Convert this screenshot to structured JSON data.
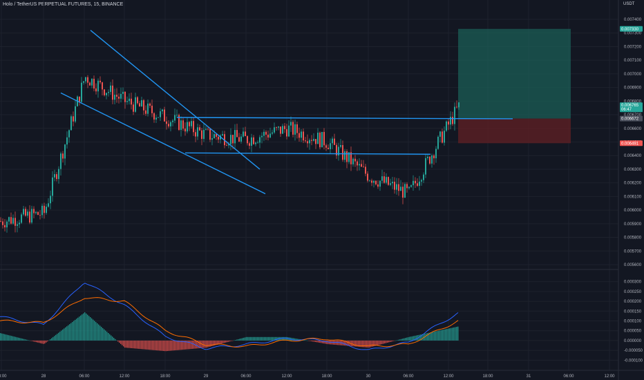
{
  "header": {
    "title": "Holo / TetherUS PERPETUAL FUTURES, 15, BINANCE",
    "currency": "USDT"
  },
  "colors": {
    "background": "#131722",
    "up": "#26a69a",
    "down": "#ef5350",
    "trendline": "#2196f3",
    "macd_line": "#2962ff",
    "signal_line": "#ff6d00",
    "profit_zone": "#1b5e55",
    "loss_zone": "#5c1f24"
  },
  "price_axis": {
    "ticks": [
      "0.007400",
      "0.007300",
      "0.007200",
      "0.007100",
      "0.007000",
      "0.006900",
      "0.006800",
      "0.006700",
      "0.006600",
      "0.006500",
      "0.006400",
      "0.006300",
      "0.006200",
      "0.006100",
      "0.006000",
      "0.005900",
      "0.005800",
      "0.005700",
      "0.005600"
    ]
  },
  "macd_axis": {
    "ticks": [
      "0.000300",
      "0.000250",
      "0.000200",
      "0.000150",
      "0.000100",
      "0.000050",
      "0.000000",
      "-0.000050",
      "-0.000100"
    ]
  },
  "time_axis": {
    "ticks": [
      "18:00",
      "28",
      "06:00",
      "12:00",
      "18:00",
      "29",
      "06:00",
      "12:00",
      "18:00",
      "30",
      "06:00",
      "12:00",
      "18:00",
      "31",
      "06:00",
      "12:00"
    ]
  },
  "badges": {
    "target": "0.007330",
    "current": "0.006765",
    "countdown": "06:47",
    "entry": "0.006672",
    "stop": "0.006491"
  },
  "chart_data": [
    {
      "type": "candlestick",
      "title": "",
      "ylim": [
        0.0056,
        0.0074
      ],
      "x": [
        "18:00",
        "28",
        "06:00",
        "12:00",
        "18:00",
        "29",
        "06:00",
        "12:00",
        "18:00",
        "30",
        "06:00",
        "12:00"
      ],
      "close": [
        0.00592,
        0.00598,
        0.00698,
        0.0068,
        0.00668,
        0.00655,
        0.00652,
        0.0066,
        0.0065,
        0.00625,
        0.00612,
        0.00676
      ],
      "trendlines": [
        {
          "name": "",
          "from": {
            "x": "06:00",
            "y": 0.00732
          },
          "to": {
            "x": "06:00",
            "y": 0.0063
          }
        },
        {
          "name": "",
          "from": {
            "x": "28",
            "y": 0.00686
          },
          "to": {
            "x": "06:00",
            "y": 0.00612
          }
        },
        {
          "name": "",
          "from": {
            "x": "18:00",
            "y": 0.00668
          },
          "to": {
            "x": "12:00",
            "y": 0.00667
          }
        },
        {
          "name": "",
          "from": {
            "x": "18:00",
            "y": 0.00642
          },
          "to": {
            "x": "06:00",
            "y": 0.00641
          }
        }
      ],
      "position": {
        "entry": 0.006672,
        "target": 0.00733,
        "stop": 0.006491
      }
    },
    {
      "type": "line",
      "title": "",
      "ylim": [
        -0.00012,
        0.00032
      ],
      "series": [
        {
          "name": "",
          "values": [
            0.00012,
            8e-05,
            0.0003,
            0.00018,
            2e-05,
            -4e-05,
            -2e-05,
            1e-05,
            0.0,
            -5e-05,
            -1e-05,
            0.00014
          ]
        },
        {
          "name": "",
          "values": [
            0.0001,
            9e-05,
            0.00022,
            0.0002,
            5e-05,
            -2e-05,
            -3e-05,
            0.0,
            1e-05,
            -3e-05,
            -2e-05,
            0.0001
          ]
        }
      ]
    }
  ]
}
